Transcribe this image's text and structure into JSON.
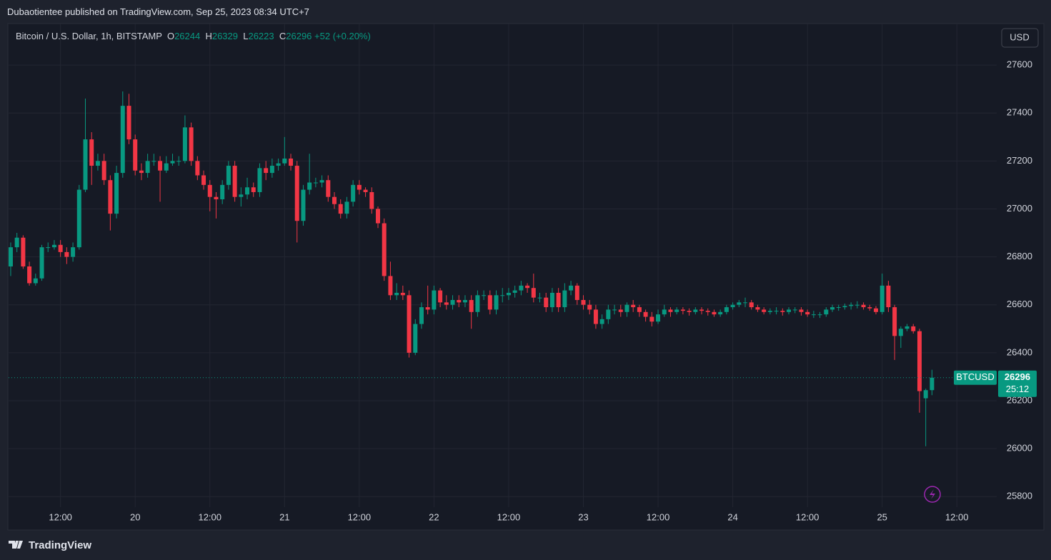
{
  "header": {
    "published": "Dubaotientee published on TradingView.com, Sep 25, 2023 08:34 UTC+7",
    "symbol": "Bitcoin / U.S. Dollar, 1h, BITSTAMP",
    "ohlc_labels": [
      "O",
      "H",
      "L",
      "C"
    ],
    "change": "+52 (+0.20%)"
  },
  "chart_data": {
    "type": "candlestick",
    "series": [
      {
        "name": "BTCUSD",
        "up_color": "#089981",
        "down_color": "#f23645",
        "open": [
          26760,
          26840,
          26880,
          26760,
          26690,
          26710,
          26840,
          26840,
          26850,
          26820,
          26800,
          26840,
          27080,
          27290,
          27180,
          27200,
          27120,
          26980,
          27150,
          27430,
          27290,
          27160,
          27150,
          27200,
          27200,
          27160,
          27190,
          27200,
          27200,
          27340,
          27200,
          27140,
          27100,
          27050,
          27040,
          27100,
          27180,
          27050,
          27060,
          27090,
          27070,
          27170,
          27150,
          27180,
          27190,
          27210,
          27180,
          26950,
          27080,
          27110,
          27110,
          27120,
          27050,
          27020,
          26980,
          27030,
          27100,
          27080,
          27070,
          27000,
          26940,
          26720,
          26640,
          26650,
          26640,
          26400,
          26520,
          26590,
          26580,
          26660,
          26610,
          26600,
          26620,
          26610,
          26620,
          26570,
          26640,
          26640,
          26580,
          26640,
          26640,
          26650,
          26660,
          26680,
          26670,
          26630,
          26630,
          26590,
          26650,
          26590,
          26660,
          26680,
          26620,
          26600,
          26580,
          26520,
          26540,
          26580,
          26580,
          26570,
          26600,
          26590,
          26570,
          26550,
          26530,
          26560,
          26580,
          26570,
          26580,
          26575,
          26570,
          26580,
          26575,
          26570,
          26560,
          26570,
          26590,
          26600,
          26610,
          26610,
          26590,
          26580,
          26570,
          26575,
          26575,
          26570,
          26580,
          26580,
          26570,
          26560,
          26560,
          26560,
          26580,
          26590,
          26590,
          26595,
          26600,
          26600,
          26590,
          26585,
          26570,
          26680,
          26590,
          26470,
          26500,
          26510,
          26490,
          26210,
          26244
        ],
        "high": [
          26860,
          26900,
          26890,
          26780,
          26730,
          26850,
          26860,
          26870,
          26870,
          26840,
          26860,
          27100,
          27460,
          27320,
          27230,
          27230,
          27140,
          27180,
          27490,
          27480,
          27310,
          27190,
          27230,
          27230,
          27220,
          27220,
          27230,
          27220,
          27390,
          27360,
          27220,
          27160,
          27120,
          27070,
          27120,
          27200,
          27200,
          27090,
          27130,
          27110,
          27190,
          27200,
          27210,
          27210,
          27300,
          27230,
          27200,
          27100,
          27230,
          27130,
          27140,
          27140,
          27070,
          27040,
          27050,
          27120,
          27120,
          27090,
          27090,
          27010,
          26960,
          26780,
          26690,
          26680,
          26660,
          26540,
          26610,
          26680,
          26680,
          26670,
          26640,
          26640,
          26640,
          26640,
          26640,
          26660,
          26660,
          26660,
          26660,
          26670,
          26670,
          26680,
          26700,
          26690,
          26730,
          26650,
          26650,
          26670,
          26670,
          26690,
          26700,
          26690,
          26640,
          26620,
          26600,
          26560,
          26600,
          26600,
          26600,
          26610,
          26620,
          26600,
          26580,
          26570,
          26580,
          26600,
          26590,
          26590,
          26590,
          26585,
          26590,
          26590,
          26585,
          26580,
          26580,
          26600,
          26610,
          26620,
          26630,
          26620,
          26600,
          26590,
          26585,
          26590,
          26585,
          26590,
          26590,
          26590,
          26580,
          26575,
          26570,
          26590,
          26600,
          26600,
          26605,
          26610,
          26615,
          26610,
          26600,
          26595,
          26730,
          26700,
          26600,
          26510,
          26520,
          26520,
          26500,
          26250,
          26329
        ],
        "low": [
          26720,
          26820,
          26750,
          26680,
          26680,
          26700,
          26820,
          26830,
          26800,
          26770,
          26780,
          26830,
          27070,
          27100,
          27160,
          27100,
          26910,
          26960,
          27130,
          27270,
          27140,
          27120,
          27130,
          27180,
          27030,
          27150,
          27180,
          27180,
          27190,
          27180,
          27120,
          27080,
          26990,
          26960,
          27020,
          27080,
          27030,
          27010,
          27040,
          27050,
          27050,
          27120,
          27130,
          27160,
          27180,
          27160,
          26860,
          26930,
          27060,
          27090,
          27090,
          27030,
          27000,
          26960,
          26960,
          27010,
          27060,
          27050,
          26980,
          26920,
          26700,
          26620,
          26620,
          26620,
          26380,
          26390,
          26500,
          26560,
          26560,
          26590,
          26580,
          26580,
          26590,
          26590,
          26500,
          26550,
          26620,
          26560,
          26560,
          26610,
          26620,
          26630,
          26640,
          26650,
          26610,
          26610,
          26570,
          26570,
          26570,
          26570,
          26640,
          26600,
          26580,
          26560,
          26500,
          26500,
          26520,
          26560,
          26550,
          26550,
          26570,
          26550,
          26530,
          26510,
          26520,
          26550,
          26550,
          26560,
          26560,
          26555,
          26560,
          26560,
          26555,
          26550,
          26550,
          26560,
          26580,
          26590,
          26590,
          26580,
          26570,
          26560,
          26560,
          26560,
          26555,
          26560,
          26565,
          26555,
          26550,
          26545,
          26545,
          26550,
          26570,
          26575,
          26580,
          26580,
          26585,
          26580,
          26575,
          26560,
          26560,
          26570,
          26370,
          26420,
          26490,
          26480,
          26150,
          26010,
          26223
        ],
        "close": [
          26840,
          26880,
          26760,
          26690,
          26710,
          26840,
          26840,
          26850,
          26820,
          26800,
          26840,
          27080,
          27290,
          27180,
          27200,
          27120,
          26980,
          27150,
          27430,
          27290,
          27160,
          27150,
          27200,
          27200,
          27160,
          27190,
          27200,
          27200,
          27340,
          27200,
          27140,
          27100,
          27050,
          27040,
          27100,
          27180,
          27050,
          27060,
          27090,
          27070,
          27170,
          27150,
          27180,
          27190,
          27210,
          27180,
          26950,
          27080,
          27110,
          27110,
          27120,
          27050,
          27020,
          26980,
          27030,
          27100,
          27080,
          27070,
          27000,
          26940,
          26720,
          26640,
          26650,
          26640,
          26400,
          26520,
          26590,
          26580,
          26660,
          26610,
          26600,
          26620,
          26610,
          26620,
          26570,
          26640,
          26640,
          26580,
          26640,
          26640,
          26650,
          26660,
          26680,
          26670,
          26630,
          26630,
          26590,
          26650,
          26590,
          26660,
          26680,
          26620,
          26600,
          26580,
          26520,
          26540,
          26580,
          26580,
          26570,
          26600,
          26590,
          26570,
          26550,
          26530,
          26560,
          26580,
          26570,
          26580,
          26575,
          26570,
          26580,
          26575,
          26570,
          26560,
          26570,
          26590,
          26600,
          26610,
          26610,
          26590,
          26580,
          26570,
          26575,
          26575,
          26570,
          26580,
          26580,
          26570,
          26560,
          26560,
          26560,
          26580,
          26590,
          26590,
          26595,
          26600,
          26600,
          26590,
          26585,
          26570,
          26680,
          26590,
          26470,
          26500,
          26510,
          26490,
          26240,
          26244,
          26296
        ]
      }
    ],
    "xlim": [
      -0.34,
      158.4
    ],
    "xticks": [
      {
        "value": 8,
        "label": "12:00"
      },
      {
        "value": 20,
        "label": "20"
      },
      {
        "value": 32,
        "label": "12:00"
      },
      {
        "value": 44,
        "label": "21"
      },
      {
        "value": 56,
        "label": "12:00"
      },
      {
        "value": 68,
        "label": "22"
      },
      {
        "value": 80,
        "label": "12:00"
      },
      {
        "value": 92,
        "label": "23"
      },
      {
        "value": 104,
        "label": "12:00"
      },
      {
        "value": 116,
        "label": "24"
      },
      {
        "value": 128,
        "label": "12:00"
      },
      {
        "value": 140,
        "label": "25"
      },
      {
        "value": 152,
        "label": "12:00"
      }
    ],
    "ylim": [
      25756,
      27773
    ],
    "yticks": [
      25800,
      26000,
      26200,
      26400,
      26600,
      26800,
      27000,
      27200,
      27400,
      27600
    ],
    "grid": true,
    "currency": "USD",
    "countdown": "25:12"
  },
  "footer": {
    "brand": "TradingView"
  }
}
